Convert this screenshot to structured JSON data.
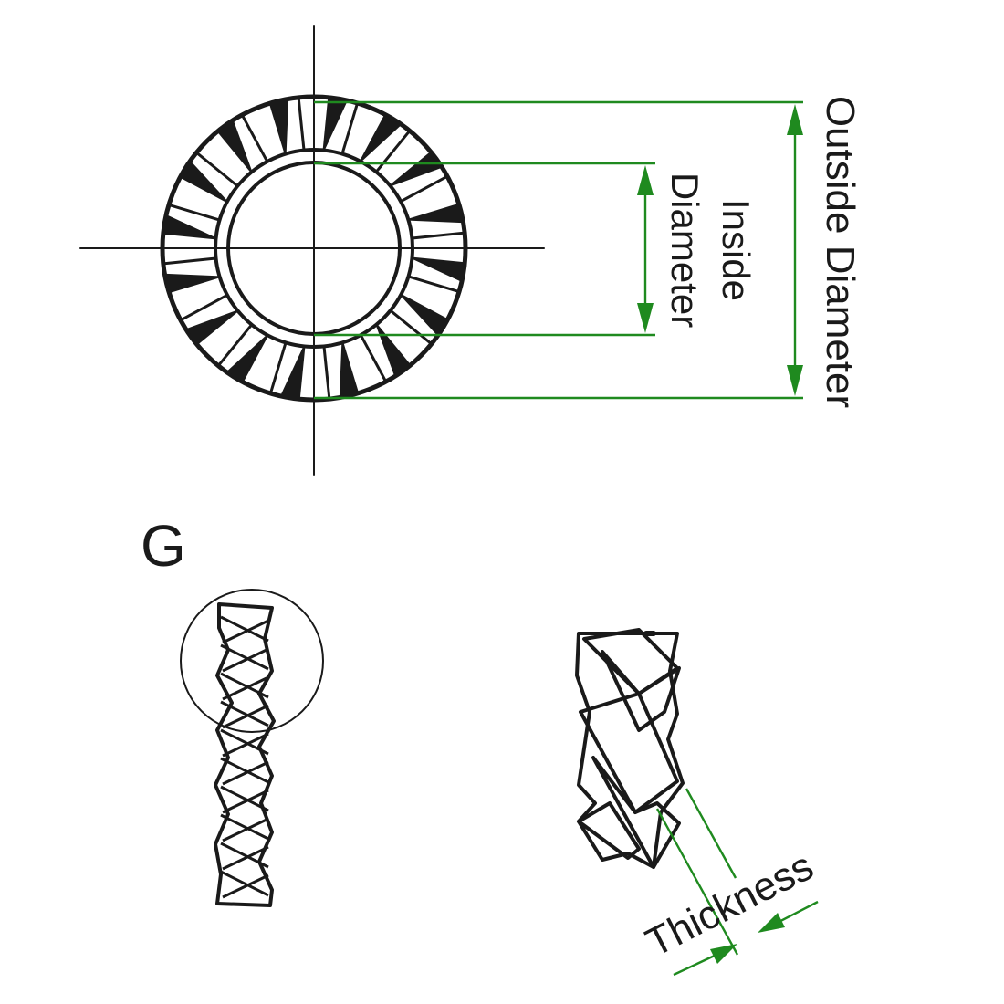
{
  "labels": {
    "outside_diameter": "Outside Diameter",
    "inside_diameter_line1": "Inside",
    "inside_diameter_line2": "Diameter",
    "thickness": "Thickness",
    "detail_marker": "G"
  },
  "colors": {
    "ink": "#1a1a1a",
    "dimension": "#1f8a1f"
  }
}
